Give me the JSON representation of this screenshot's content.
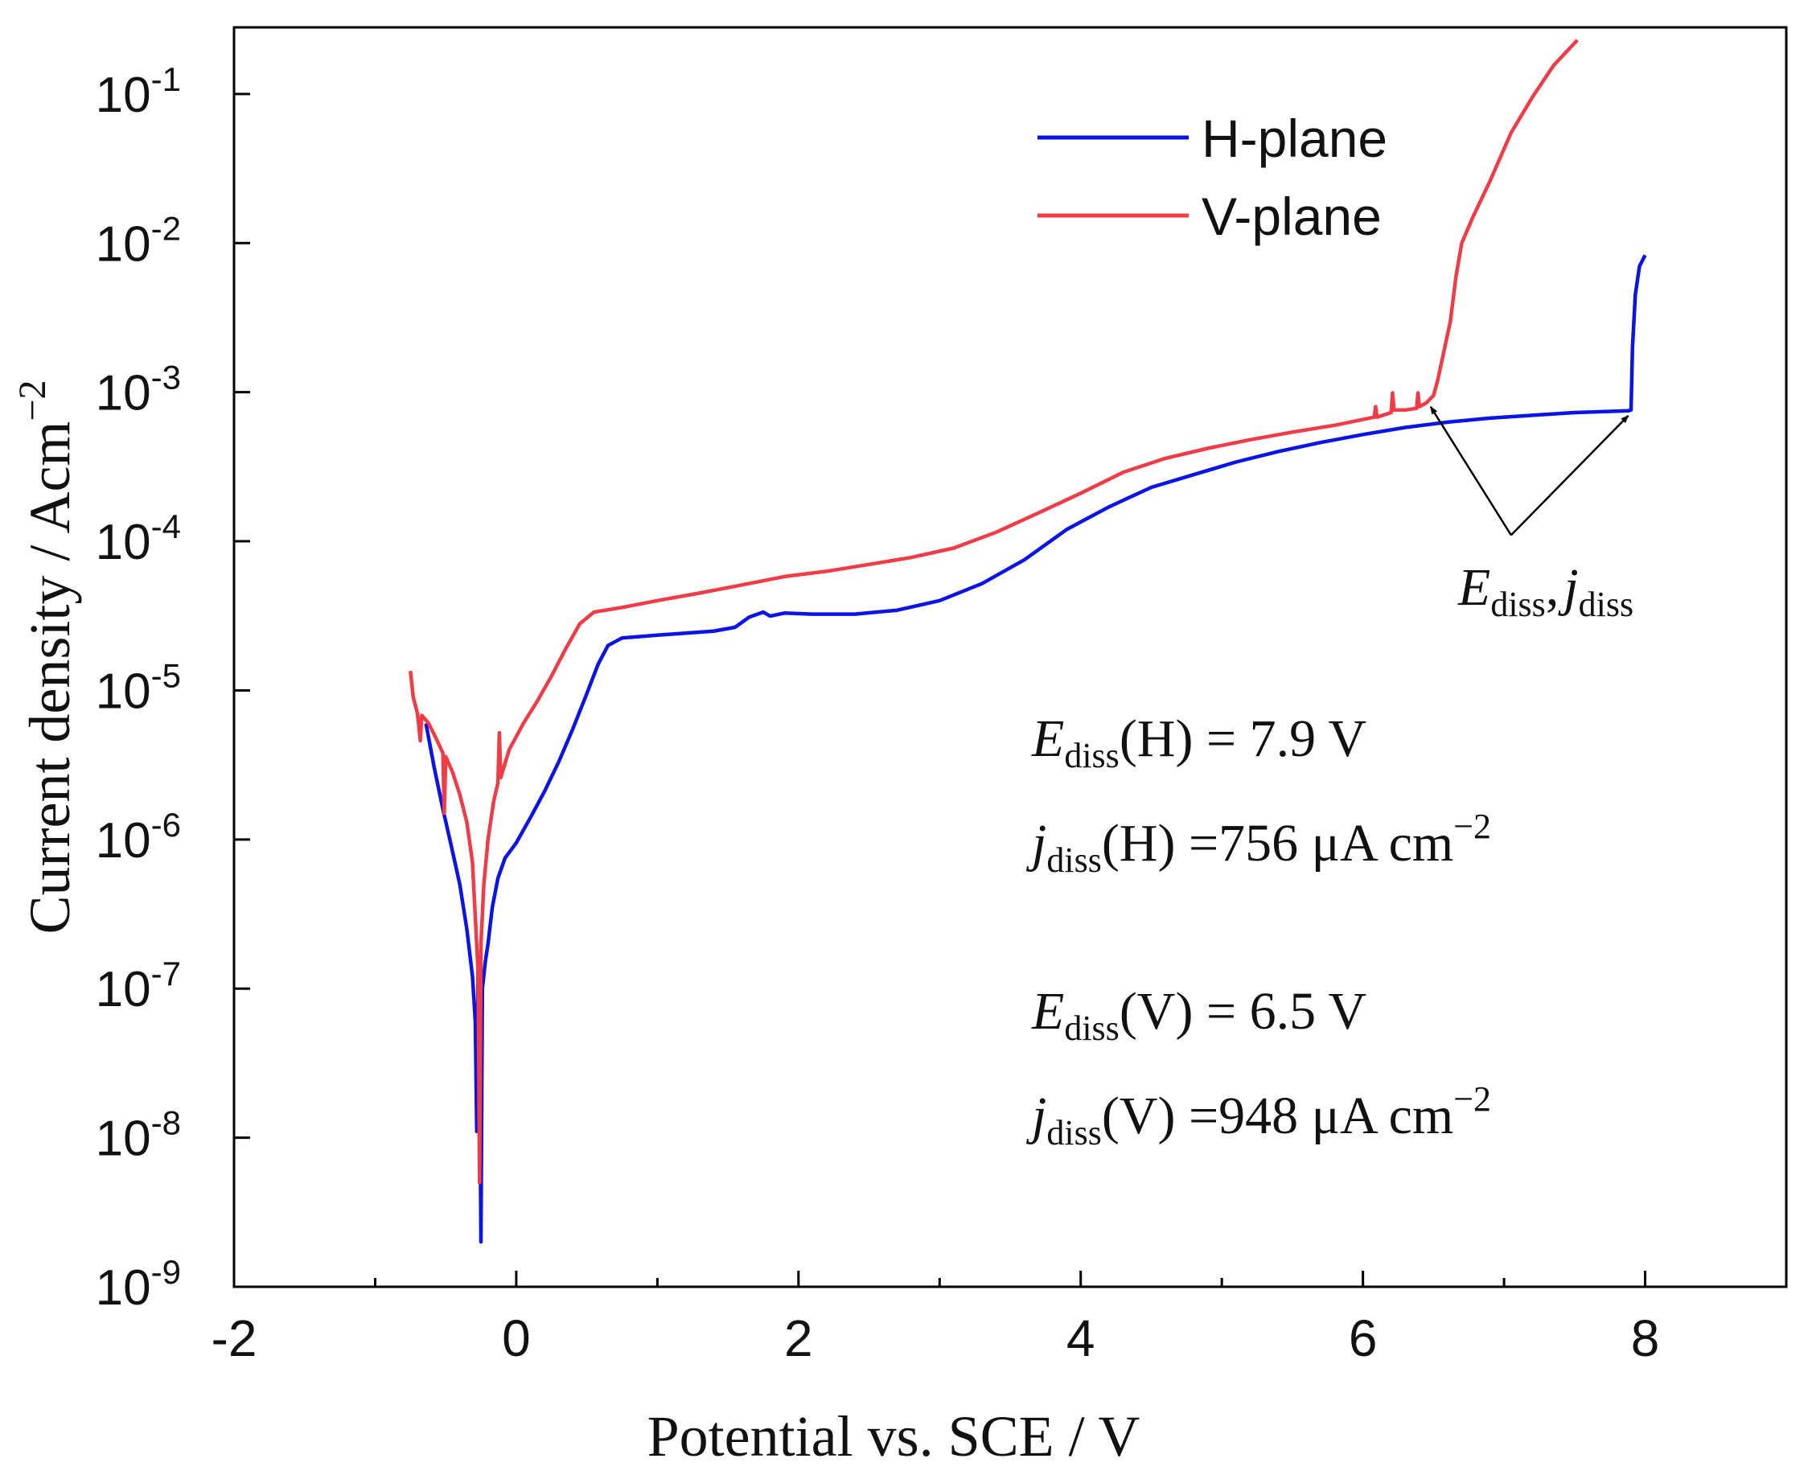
{
  "chart_data": {
    "type": "line",
    "title": "",
    "xlabel": "Potential vs. SCE / V",
    "ylabel": "Current density / Acm",
    "ylabel_exponent": "−2",
    "x_scale": "linear",
    "y_scale": "log",
    "xlim": [
      -2,
      9
    ],
    "ylim": [
      1e-09,
      0.28
    ],
    "x_ticks": [
      -2,
      0,
      2,
      4,
      6,
      8
    ],
    "x_tick_labels": [
      "-2",
      "0",
      "2",
      "4",
      "6",
      "8"
    ],
    "x_minor_ticks": [
      -1,
      1,
      3,
      5,
      7
    ],
    "y_ticks": [
      {
        "value": 1e-09,
        "base": "10",
        "exp": "-9"
      },
      {
        "value": 1e-08,
        "base": "10",
        "exp": "-8"
      },
      {
        "value": 1e-07,
        "base": "10",
        "exp": "-7"
      },
      {
        "value": 1e-06,
        "base": "10",
        "exp": "-6"
      },
      {
        "value": 1e-05,
        "base": "10",
        "exp": "-5"
      },
      {
        "value": 0.0001,
        "base": "10",
        "exp": "-4"
      },
      {
        "value": 0.001,
        "base": "10",
        "exp": "-3"
      },
      {
        "value": 0.01,
        "base": "10",
        "exp": "-2"
      },
      {
        "value": 0.1,
        "base": "10",
        "exp": "-1"
      }
    ],
    "legend": {
      "position": "top-right",
      "entries": [
        "H-plane",
        "V-plane"
      ]
    },
    "series": [
      {
        "name": "H-plane",
        "color": "#0a14e6",
        "points": [
          [
            -0.64,
            6e-06
          ],
          [
            -0.58,
            3e-06
          ],
          [
            -0.52,
            1.6e-06
          ],
          [
            -0.46,
            9e-07
          ],
          [
            -0.4,
            5e-07
          ],
          [
            -0.35,
            2.5e-07
          ],
          [
            -0.31,
            1.2e-07
          ],
          [
            -0.29,
            6e-08
          ],
          [
            -0.28,
            1.1e-08
          ],
          [
            -0.27,
            1.5e-07
          ],
          [
            -0.26,
            5e-08
          ],
          [
            -0.25,
            2e-09
          ],
          [
            -0.24,
            1e-07
          ],
          [
            -0.22,
            1.5e-07
          ],
          [
            -0.2,
            2e-07
          ],
          [
            -0.17,
            3.5e-07
          ],
          [
            -0.13,
            5.5e-07
          ],
          [
            -0.08,
            7.5e-07
          ],
          [
            0.0,
            9.5e-07
          ],
          [
            0.1,
            1.4e-06
          ],
          [
            0.2,
            2.1e-06
          ],
          [
            0.3,
            3.3e-06
          ],
          [
            0.4,
            5.5e-06
          ],
          [
            0.5,
            9.5e-06
          ],
          [
            0.58,
            1.5e-05
          ],
          [
            0.65,
            2e-05
          ],
          [
            0.75,
            2.25e-05
          ],
          [
            1.0,
            2.35e-05
          ],
          [
            1.2,
            2.42e-05
          ],
          [
            1.4,
            2.5e-05
          ],
          [
            1.55,
            2.65e-05
          ],
          [
            1.65,
            3.1e-05
          ],
          [
            1.75,
            3.35e-05
          ],
          [
            1.8,
            3.15e-05
          ],
          [
            1.9,
            3.3e-05
          ],
          [
            2.1,
            3.25e-05
          ],
          [
            2.4,
            3.25e-05
          ],
          [
            2.7,
            3.45e-05
          ],
          [
            3.0,
            4e-05
          ],
          [
            3.3,
            5.2e-05
          ],
          [
            3.6,
            7.5e-05
          ],
          [
            3.9,
            0.00012
          ],
          [
            4.2,
            0.00017
          ],
          [
            4.5,
            0.00023
          ],
          [
            4.8,
            0.00028
          ],
          [
            5.1,
            0.00034
          ],
          [
            5.4,
            0.0004
          ],
          [
            5.7,
            0.00046
          ],
          [
            6.0,
            0.00052
          ],
          [
            6.3,
            0.00058
          ],
          [
            6.6,
            0.00063
          ],
          [
            6.9,
            0.00067
          ],
          [
            7.2,
            0.0007
          ],
          [
            7.5,
            0.00073
          ],
          [
            7.88,
            0.00075
          ],
          [
            7.9,
            0.00076
          ],
          [
            7.91,
            0.002
          ],
          [
            7.93,
            0.0045
          ],
          [
            7.96,
            0.007
          ],
          [
            8.0,
            0.0083
          ]
        ]
      },
      {
        "name": "V-plane",
        "color": "#f03c46",
        "points": [
          [
            -0.75,
            1.35e-05
          ],
          [
            -0.73,
            9e-06
          ],
          [
            -0.7,
            7e-06
          ],
          [
            -0.68,
            4.6e-06
          ],
          [
            -0.67,
            6.8e-06
          ],
          [
            -0.62,
            6e-06
          ],
          [
            -0.57,
            4.8e-06
          ],
          [
            -0.52,
            3.8e-06
          ],
          [
            -0.51,
            1.5e-06
          ],
          [
            -0.5,
            3.6e-06
          ],
          [
            -0.45,
            2.8e-06
          ],
          [
            -0.4,
            2e-06
          ],
          [
            -0.35,
            1.3e-06
          ],
          [
            -0.31,
            7e-07
          ],
          [
            -0.29,
            3e-07
          ],
          [
            -0.27,
            1.3e-07
          ],
          [
            -0.26,
            5e-09
          ],
          [
            -0.25,
            2e-07
          ],
          [
            -0.23,
            5e-07
          ],
          [
            -0.2,
            1e-06
          ],
          [
            -0.16,
            1.8e-06
          ],
          [
            -0.13,
            2.4e-06
          ],
          [
            -0.12,
            5.2e-06
          ],
          [
            -0.11,
            2.6e-06
          ],
          [
            -0.05,
            4e-06
          ],
          [
            0.05,
            6e-06
          ],
          [
            0.15,
            8.5e-06
          ],
          [
            0.25,
            1.25e-05
          ],
          [
            0.35,
            1.9e-05
          ],
          [
            0.45,
            2.8e-05
          ],
          [
            0.55,
            3.35e-05
          ],
          [
            0.75,
            3.6e-05
          ],
          [
            1.0,
            4e-05
          ],
          [
            1.3,
            4.5e-05
          ],
          [
            1.6,
            5.1e-05
          ],
          [
            1.9,
            5.8e-05
          ],
          [
            2.2,
            6.3e-05
          ],
          [
            2.5,
            7e-05
          ],
          [
            2.8,
            7.8e-05
          ],
          [
            3.1,
            9e-05
          ],
          [
            3.4,
            0.000115
          ],
          [
            3.7,
            0.000155
          ],
          [
            4.0,
            0.00021
          ],
          [
            4.3,
            0.00029
          ],
          [
            4.6,
            0.00036
          ],
          [
            4.9,
            0.00042
          ],
          [
            5.2,
            0.00048
          ],
          [
            5.5,
            0.00054
          ],
          [
            5.8,
            0.0006
          ],
          [
            6.08,
            0.00068
          ],
          [
            6.09,
            0.0008
          ],
          [
            6.1,
            0.00068
          ],
          [
            6.2,
            0.00073
          ],
          [
            6.21,
            0.00099
          ],
          [
            6.22,
            0.00076
          ],
          [
            6.3,
            0.00076
          ],
          [
            6.38,
            0.00078
          ],
          [
            6.39,
            0.00099
          ],
          [
            6.4,
            0.0008
          ],
          [
            6.45,
            0.00085
          ],
          [
            6.5,
            0.00095
          ],
          [
            6.53,
            0.0012
          ],
          [
            6.57,
            0.0018
          ],
          [
            6.62,
            0.003
          ],
          [
            6.66,
            0.006
          ],
          [
            6.7,
            0.01
          ],
          [
            6.78,
            0.015
          ],
          [
            6.9,
            0.026
          ],
          [
            7.05,
            0.055
          ],
          [
            7.2,
            0.095
          ],
          [
            7.35,
            0.155
          ],
          [
            7.52,
            0.23
          ]
        ]
      }
    ],
    "annotations": {
      "arrow_label": {
        "italic": "E",
        "sub": "diss",
        "sep": ",",
        "italic2": "j",
        "sub2": "diss"
      },
      "arrow_targets": [
        [
          6.48,
          0.00086
        ],
        [
          7.88,
          0.00075
        ]
      ],
      "arrow_origin": [
        7.05,
        0.00011
      ],
      "lines": [
        {
          "italic": "E",
          "sub": "diss",
          "rest": "(H) = 7.9 V",
          "sup": ""
        },
        {
          "italic": "j",
          "sub": "diss",
          "rest": "(H) =756 μA cm",
          "sup": "−2"
        },
        {
          "italic": "E",
          "sub": "diss",
          "rest": "(V) = 6.5 V",
          "sup": ""
        },
        {
          "italic": "j",
          "sub": "diss",
          "rest": "(V) =948 μA cm",
          "sup": "−2"
        }
      ]
    }
  }
}
